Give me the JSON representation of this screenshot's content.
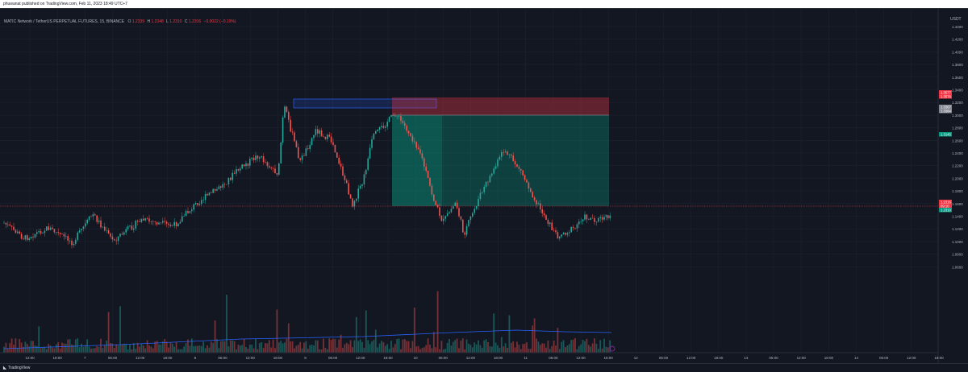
{
  "header": {
    "published_text": "phuwanat published on TradingView.com, Feb 11, 2023 18:49 UTC+7"
  },
  "symbol": {
    "name": "MATIC Network / TetherUS PERPETUAL FUTURES, 15, BINANCE",
    "open_label": "O",
    "open": "1.2339",
    "high_label": "H",
    "high": "1.2348",
    "low_label": "L",
    "low": "1.2310",
    "close_label": "C",
    "close": "1.2316",
    "change": "−0.0022 (−0.19%)",
    "ohlc_color": "#f23645"
  },
  "price_axis": {
    "currency": "USDT",
    "ticks": [
      "1.4400",
      "1.4200",
      "1.4000",
      "1.3800",
      "1.3600",
      "1.3400",
      "1.3200",
      "1.3000",
      "1.2800",
      "1.2600",
      "1.2400",
      "1.2200",
      "1.2000",
      "1.1800",
      "1.1600",
      "1.1400",
      "1.1200",
      "1.1000",
      "1.0800",
      "1.0600"
    ],
    "tags": [
      {
        "text": "1.3577",
        "color": "#f23645"
      },
      {
        "text": "1.3576",
        "color": "#f23645"
      },
      {
        "text": "1.3367",
        "color": "#868993"
      },
      {
        "text": "1.3364",
        "color": "#868993"
      },
      {
        "text": "1.3145",
        "color": "#089981"
      },
      {
        "text": "1.2316",
        "color": "#f23645"
      },
      {
        "text": "09:10",
        "color": "#f23645"
      },
      {
        "text": "1.2310",
        "color": "#089981"
      }
    ]
  },
  "time_axis": {
    "ticks": [
      "12:00",
      "18:00",
      "7",
      "06:00",
      "12:00",
      "18:00",
      "8",
      "06:00",
      "12:00",
      "18:00",
      "9",
      "06:00",
      "12:00",
      "18:00",
      "10",
      "06:00",
      "12:00",
      "18:00",
      "11",
      "06:00",
      "12:00",
      "18:00",
      "12",
      "06:00",
      "12:00",
      "18:00",
      "13",
      "06:00",
      "12:00",
      "18:00",
      "14",
      "06:00",
      "12:00",
      "18:00"
    ]
  },
  "footer": {
    "logo_text": "TradingView"
  },
  "colors": {
    "up": "#26a69a",
    "down": "#ef5350",
    "background": "#131722",
    "grid": "#1e222d",
    "stop_zone": "#f23645",
    "target_zone": "#089981",
    "supply_box": "#2962ff",
    "volume_ma": "#2962ff"
  }
}
